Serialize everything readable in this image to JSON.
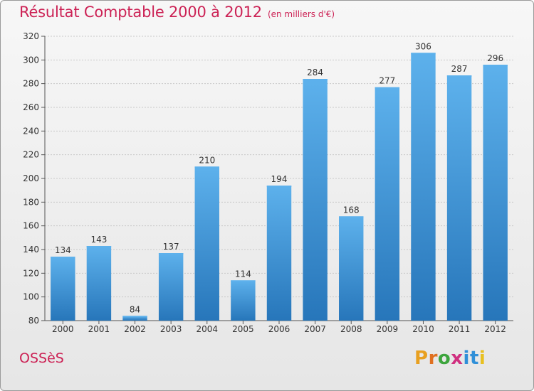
{
  "header": {
    "title": "Résultat Comptable 2000 à 2012",
    "subtitle": "(en milliers d'€)"
  },
  "commune": "OSSèS",
  "brand": {
    "letters": [
      "P",
      "r",
      "o",
      "x",
      "i",
      "t",
      "i"
    ],
    "colors": [
      "#e8a020",
      "#e07020",
      "#3da53d",
      "#d03080",
      "#2f8fd8",
      "#2f8fd8",
      "#e8c020"
    ]
  },
  "colors": {
    "bar": "#3a8fd6",
    "bar_light": "#5db1ec",
    "bar_dark": "#2776ba",
    "grid": "#c8c8c8",
    "axis": "#555555",
    "text": "#333333",
    "title": "#cc2255"
  },
  "chart_data": {
    "type": "bar",
    "categories": [
      "2000",
      "2001",
      "2002",
      "2003",
      "2004",
      "2005",
      "2006",
      "2007",
      "2008",
      "2009",
      "2010",
      "2011",
      "2012"
    ],
    "values": [
      134,
      143,
      84,
      137,
      210,
      114,
      194,
      284,
      168,
      277,
      306,
      287,
      296
    ],
    "ylim": [
      80,
      320
    ],
    "yticks": [
      80,
      100,
      120,
      140,
      160,
      180,
      200,
      220,
      240,
      260,
      280,
      300,
      320
    ],
    "grid": true,
    "data_labels": true
  }
}
